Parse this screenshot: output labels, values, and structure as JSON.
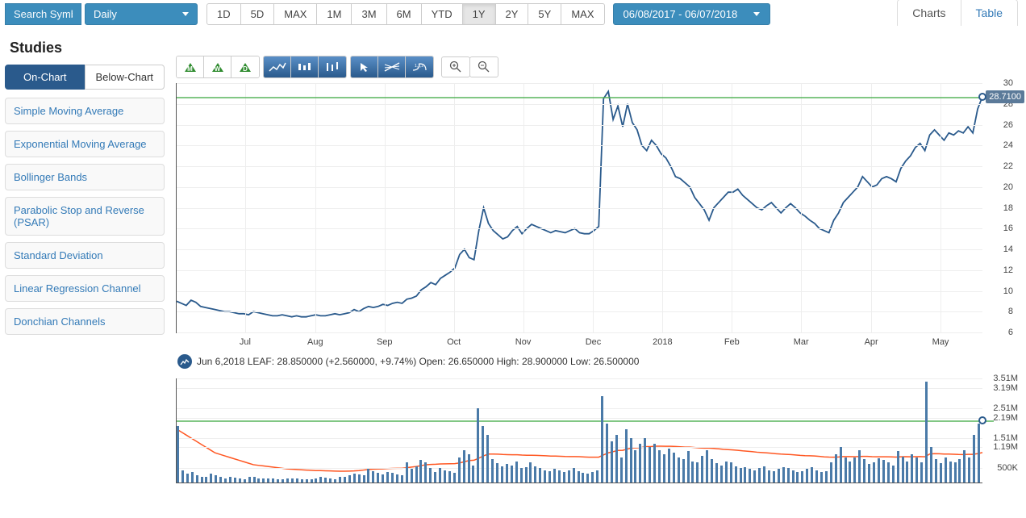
{
  "toolbar": {
    "search_placeholder": "Search Symbol",
    "interval_label": "Daily",
    "date_range": "06/08/2017 - 06/07/2018",
    "range_buttons": [
      "1D",
      "5D",
      "MAX",
      "1M",
      "3M",
      "6M",
      "YTD",
      "1Y",
      "2Y",
      "5Y",
      "MAX"
    ],
    "active_range_index": 7
  },
  "sidebar": {
    "title": "Studies",
    "tabs": [
      "On-Chart",
      "Below-Chart"
    ],
    "active_tab": 0,
    "studies": [
      "Simple Moving Average",
      "Exponential Moving Average",
      "Bollinger Bands",
      "Parabolic Stop and Reverse (PSAR)",
      "Standard Deviation",
      "Linear Regression Channel",
      "Donchian Channels"
    ]
  },
  "view_tabs": {
    "items": [
      "Charts",
      "Table"
    ],
    "active": 0
  },
  "chart_tools": {
    "period_markers": [
      "M",
      "W",
      "D"
    ],
    "zoom_in": "⊕",
    "zoom_out": "⊖"
  },
  "price_chart": {
    "type": "line",
    "line_color": "#2a5a8c",
    "line_width": 1.8,
    "background": "#ffffff",
    "grid_color": "#eeeeee",
    "ref_line_color": "#4caf50",
    "ref_value": 28.71,
    "ref_label": "28.7100",
    "ylim": [
      6,
      30
    ],
    "yticks": [
      6,
      8,
      10,
      12,
      14,
      16,
      18,
      20,
      22,
      24,
      26,
      28,
      30
    ],
    "x_labels": [
      "Jul",
      "Aug",
      "Sep",
      "Oct",
      "Nov",
      "Dec",
      "2018",
      "Feb",
      "Mar",
      "Apr",
      "May"
    ],
    "x_positions_pct": [
      8.5,
      17.2,
      25.8,
      34.4,
      43.0,
      51.7,
      60.3,
      68.9,
      77.5,
      86.2,
      94.8
    ],
    "data": [
      9.0,
      8.8,
      8.6,
      9.1,
      8.9,
      8.5,
      8.4,
      8.3,
      8.2,
      8.1,
      8.0,
      8.0,
      7.9,
      7.8,
      7.8,
      7.7,
      8.0,
      7.9,
      7.8,
      7.7,
      7.6,
      7.6,
      7.7,
      7.6,
      7.5,
      7.6,
      7.5,
      7.5,
      7.6,
      7.7,
      7.6,
      7.6,
      7.7,
      7.8,
      7.7,
      7.8,
      7.9,
      8.2,
      8.0,
      8.3,
      8.5,
      8.4,
      8.5,
      8.7,
      8.6,
      8.8,
      8.9,
      8.8,
      9.2,
      9.3,
      9.5,
      10.1,
      10.4,
      10.8,
      10.6,
      11.2,
      11.5,
      11.8,
      12.2,
      13.5,
      14.0,
      13.2,
      13.0,
      15.8,
      18.0,
      16.5,
      15.8,
      15.4,
      15.0,
      15.2,
      15.8,
      16.2,
      15.5,
      16.0,
      16.4,
      16.2,
      16.0,
      15.8,
      15.6,
      15.8,
      15.7,
      15.6,
      15.8,
      16.0,
      15.6,
      15.5,
      15.5,
      15.8,
      16.2,
      28.5,
      29.2,
      26.5,
      27.8,
      25.8,
      28.0,
      26.2,
      25.5,
      24.0,
      23.5,
      24.5,
      24.0,
      23.2,
      22.8,
      22.0,
      21.0,
      20.8,
      20.4,
      20.0,
      19.0,
      18.4,
      17.8,
      16.8,
      18.0,
      18.5,
      19.0,
      19.5,
      19.5,
      19.8,
      19.2,
      18.8,
      18.4,
      18.0,
      17.8,
      18.2,
      18.5,
      18.0,
      17.5,
      18.0,
      18.4,
      18.0,
      17.5,
      17.2,
      16.8,
      16.5,
      16.0,
      15.8,
      15.6,
      16.8,
      17.5,
      18.5,
      19.0,
      19.5,
      20.0,
      21.0,
      20.5,
      20.0,
      20.2,
      20.8,
      21.0,
      20.8,
      20.5,
      21.8,
      22.5,
      23.0,
      23.8,
      24.2,
      23.5,
      25.0,
      25.5,
      25.0,
      24.5,
      25.2,
      25.0,
      25.4,
      25.2,
      25.8,
      25.2,
      27.5,
      28.7
    ]
  },
  "info_line": "Jun 6,2018 LEAF: 28.850000 (+2.560000, +9.74%) Open: 26.650000 High: 28.900000 Low: 26.500000",
  "volume_chart": {
    "type": "bar+line",
    "bar_color": "#4a7aa8",
    "ma_color": "#ff5722",
    "ma_width": 1.5,
    "ref_color": "#4caf50",
    "ylim_max": 3510000,
    "ref_value": 2100000,
    "yticks": [
      500000,
      1190000,
      1510000,
      2190000,
      2510000,
      3190000,
      3510000
    ],
    "ytick_labels": [
      "500K",
      "1.19M",
      "1.51M",
      "2.19M",
      "2.51M",
      "3.19M",
      "3.51M"
    ],
    "bars": [
      1900000,
      400000,
      300000,
      350000,
      250000,
      200000,
      180000,
      300000,
      250000,
      200000,
      150000,
      180000,
      160000,
      140000,
      120000,
      200000,
      180000,
      150000,
      130000,
      150000,
      140000,
      120000,
      110000,
      130000,
      150000,
      140000,
      120000,
      100000,
      120000,
      150000,
      180000,
      160000,
      140000,
      120000,
      200000,
      180000,
      250000,
      300000,
      280000,
      250000,
      450000,
      380000,
      320000,
      280000,
      350000,
      320000,
      280000,
      250000,
      680000,
      450000,
      550000,
      750000,
      680000,
      480000,
      350000,
      480000,
      420000,
      380000,
      320000,
      850000,
      1100000,
      950000,
      580000,
      2510000,
      1900000,
      1600000,
      800000,
      650000,
      550000,
      620000,
      580000,
      720000,
      480000,
      520000,
      680000,
      550000,
      480000,
      420000,
      380000,
      450000,
      400000,
      350000,
      420000,
      480000,
      380000,
      320000,
      300000,
      350000,
      420000,
      2900000,
      2000000,
      1400000,
      1600000,
      850000,
      1800000,
      1500000,
      1100000,
      1300000,
      1500000,
      1200000,
      1300000,
      1100000,
      950000,
      1150000,
      1000000,
      850000,
      780000,
      1050000,
      720000,
      680000,
      900000,
      1100000,
      780000,
      650000,
      580000,
      720000,
      680000,
      550000,
      480000,
      520000,
      450000,
      400000,
      480000,
      550000,
      420000,
      380000,
      450000,
      520000,
      480000,
      400000,
      350000,
      380000,
      450000,
      520000,
      400000,
      350000,
      380000,
      680000,
      950000,
      1200000,
      850000,
      720000,
      850000,
      1100000,
      780000,
      620000,
      680000,
      820000,
      750000,
      680000,
      580000,
      1050000,
      880000,
      720000,
      950000,
      850000,
      680000,
      3400000,
      1200000,
      780000,
      650000,
      850000,
      720000,
      680000,
      780000,
      1100000,
      850000,
      1600000,
      2000000
    ],
    "ma": [
      1800000,
      1700000,
      1600000,
      1500000,
      1400000,
      1300000,
      1200000,
      1100000,
      1000000,
      950000,
      900000,
      850000,
      800000,
      750000,
      700000,
      650000,
      600000,
      580000,
      560000,
      540000,
      520000,
      500000,
      480000,
      460000,
      450000,
      440000,
      430000,
      420000,
      410000,
      400000,
      400000,
      395000,
      390000,
      385000,
      380000,
      380000,
      385000,
      390000,
      400000,
      420000,
      440000,
      450000,
      455000,
      460000,
      470000,
      475000,
      478000,
      480000,
      500000,
      520000,
      540000,
      570000,
      600000,
      610000,
      615000,
      625000,
      630000,
      632000,
      635000,
      660000,
      700000,
      740000,
      750000,
      820000,
      900000,
      960000,
      960000,
      955000,
      945000,
      940000,
      935000,
      935000,
      925000,
      920000,
      920000,
      915000,
      908000,
      900000,
      892000,
      890000,
      885000,
      878000,
      875000,
      875000,
      870000,
      862000,
      855000,
      852000,
      855000,
      930000,
      1000000,
      1040000,
      1080000,
      1085000,
      1130000,
      1165000,
      1170000,
      1185000,
      1210000,
      1215000,
      1225000,
      1225000,
      1220000,
      1220000,
      1215000,
      1205000,
      1195000,
      1195000,
      1180000,
      1165000,
      1160000,
      1160000,
      1150000,
      1135000,
      1118000,
      1110000,
      1100000,
      1085000,
      1068000,
      1055000,
      1040000,
      1022000,
      1010000,
      1000000,
      985000,
      970000,
      958000,
      950000,
      943000,
      930000,
      915000,
      905000,
      900000,
      895000,
      880000,
      865000,
      858000,
      855000,
      860000,
      875000,
      875000,
      872000,
      873000,
      882000,
      880000,
      872000,
      868000,
      868000,
      868000,
      865000,
      858000,
      867000,
      870000,
      867000,
      872000,
      873000,
      868000,
      960000,
      972000,
      968000,
      960000,
      958000,
      952000,
      945000,
      942000,
      950000,
      948000,
      972000,
      1010000
    ]
  },
  "colors": {
    "primary": "#3c8dbc",
    "accent": "#2a5a8c",
    "link": "#337ab7",
    "green": "#4caf50",
    "orange": "#ff5722"
  }
}
